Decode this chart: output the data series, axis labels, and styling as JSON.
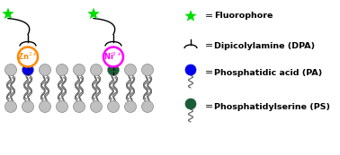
{
  "bg_color": "#ffffff",
  "lipid_gray": "#c0c0c0",
  "lipid_outline": "#888888",
  "tail_color": "#666666",
  "pa_blue": "#0000ee",
  "ps_darkgreen": "#1a5c35",
  "fluorophore_green": "#00dd00",
  "zn_circle_color": "#ff8800",
  "ni_circle_color": "#ff00ff",
  "text_color": "#000000",
  "legend_texts": [
    "Fluorophore",
    "Dipicolylamine (DPA)",
    "Phosphatidic acid (PA)",
    "Phosphatidylserine (PS)"
  ],
  "zn_label": "Zn",
  "ni_label": "Ni",
  "zn_superscript": "2+",
  "ni_superscript": "2+"
}
